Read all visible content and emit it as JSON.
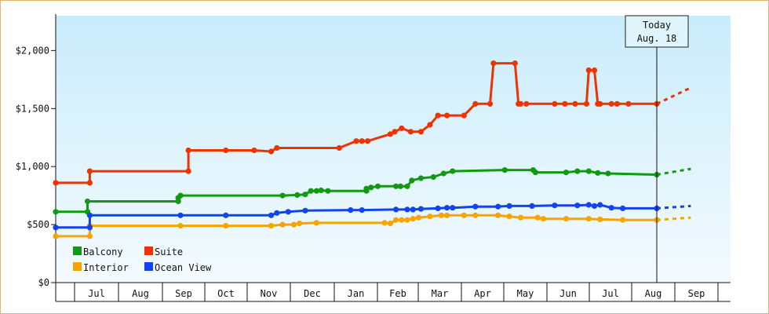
{
  "chart_data": {
    "type": "line",
    "today": {
      "label": "Today",
      "date": "Aug. 18"
    },
    "x_ticks": [
      "Jul",
      "Aug",
      "Sep",
      "Oct",
      "Nov",
      "Dec",
      "Jan",
      "Feb",
      "Mar",
      "Apr",
      "May",
      "Jun",
      "Jul",
      "Aug",
      "Sep"
    ],
    "y_ticks": [
      "$0",
      "$500",
      "$1,000",
      "$1,500",
      "$2,000"
    ],
    "ylim": [
      0,
      2300
    ],
    "xlim_days": [
      0,
      438
    ],
    "grid": false,
    "legend_placement": "bottom-left",
    "series": [
      {
        "name": "Balcony",
        "color": "#119911",
        "points": [
          [
            0,
            610
          ],
          [
            28,
            610
          ],
          [
            28,
            700
          ],
          [
            108,
            700
          ],
          [
            108,
            730
          ],
          [
            110,
            750
          ],
          [
            200,
            750
          ],
          [
            213,
            755
          ],
          [
            220,
            760
          ],
          [
            225,
            790
          ],
          [
            230,
            790
          ],
          [
            234,
            795
          ],
          [
            240,
            790
          ],
          [
            274,
            790
          ],
          [
            274,
            810
          ],
          [
            278,
            820
          ],
          [
            284,
            830
          ],
          [
            300,
            830
          ],
          [
            304,
            830
          ],
          [
            310,
            830
          ],
          [
            314,
            880
          ],
          [
            322,
            900
          ],
          [
            333,
            910
          ],
          [
            342,
            940
          ],
          [
            350,
            960
          ],
          [
            396,
            970
          ],
          [
            421,
            970
          ],
          [
            423,
            950
          ],
          [
            450,
            950
          ],
          [
            460,
            960
          ],
          [
            470,
            960
          ],
          [
            478,
            945
          ],
          [
            487,
            940
          ],
          [
            530,
            930
          ]
        ],
        "future": [
          [
            530,
            930
          ],
          [
            560,
            980
          ]
        ]
      },
      {
        "name": "Suite",
        "color": "#ee3300",
        "points": [
          [
            0,
            860
          ],
          [
            30,
            860
          ],
          [
            30,
            960
          ],
          [
            117,
            960
          ],
          [
            117,
            1140
          ],
          [
            150,
            1140
          ],
          [
            175,
            1140
          ],
          [
            190,
            1130
          ],
          [
            195,
            1160
          ],
          [
            250,
            1160
          ],
          [
            265,
            1220
          ],
          [
            270,
            1220
          ],
          [
            275,
            1220
          ],
          [
            295,
            1280
          ],
          [
            299,
            1300
          ],
          [
            305,
            1330
          ],
          [
            313,
            1300
          ],
          [
            322,
            1300
          ],
          [
            330,
            1360
          ],
          [
            337,
            1440
          ],
          [
            345,
            1440
          ],
          [
            360,
            1440
          ],
          [
            370,
            1540
          ],
          [
            383,
            1540
          ],
          [
            386,
            1890
          ],
          [
            405,
            1890
          ],
          [
            408,
            1540
          ],
          [
            410,
            1540
          ]
        ],
        "points_b": [
          [
            415,
            1540
          ],
          [
            440,
            1540
          ],
          [
            449,
            1540
          ],
          [
            458,
            1540
          ],
          [
            468,
            1540
          ],
          [
            470,
            1830
          ],
          [
            475,
            1830
          ],
          [
            478,
            1540
          ],
          [
            480,
            1540
          ],
          [
            490,
            1540
          ],
          [
            495,
            1540
          ],
          [
            505,
            1540
          ],
          [
            530,
            1540
          ]
        ],
        "future": [
          [
            530,
            1540
          ],
          [
            560,
            1680
          ]
        ]
      },
      {
        "name": "Interior",
        "color": "#f7a300",
        "points": [
          [
            0,
            400
          ],
          [
            30,
            400
          ],
          [
            30,
            490
          ],
          [
            110,
            490
          ],
          [
            150,
            490
          ],
          [
            190,
            490
          ],
          [
            200,
            500
          ],
          [
            210,
            500
          ],
          [
            215,
            510
          ],
          [
            230,
            515
          ],
          [
            290,
            515
          ],
          [
            295,
            510
          ],
          [
            300,
            540
          ],
          [
            305,
            540
          ],
          [
            310,
            540
          ],
          [
            315,
            550
          ],
          [
            320,
            560
          ],
          [
            330,
            570
          ],
          [
            340,
            580
          ],
          [
            345,
            580
          ],
          [
            360,
            580
          ],
          [
            370,
            580
          ],
          [
            390,
            580
          ],
          [
            400,
            570
          ],
          [
            410,
            560
          ],
          [
            425,
            560
          ],
          [
            430,
            550
          ],
          [
            450,
            550
          ],
          [
            470,
            550
          ],
          [
            480,
            545
          ],
          [
            500,
            540
          ],
          [
            530,
            540
          ]
        ],
        "future": [
          [
            530,
            540
          ],
          [
            560,
            560
          ]
        ]
      },
      {
        "name": "Ocean View",
        "color": "#1144ee",
        "points": [
          [
            0,
            475
          ],
          [
            30,
            475
          ],
          [
            30,
            580
          ],
          [
            110,
            580
          ],
          [
            150,
            580
          ],
          [
            190,
            580
          ],
          [
            195,
            600
          ],
          [
            205,
            610
          ],
          [
            220,
            620
          ],
          [
            260,
            625
          ],
          [
            270,
            625
          ],
          [
            300,
            630
          ],
          [
            310,
            630
          ],
          [
            315,
            630
          ],
          [
            322,
            635
          ],
          [
            337,
            640
          ],
          [
            345,
            645
          ],
          [
            350,
            645
          ],
          [
            370,
            655
          ],
          [
            390,
            655
          ],
          [
            400,
            660
          ],
          [
            420,
            660
          ],
          [
            440,
            665
          ],
          [
            460,
            665
          ],
          [
            470,
            670
          ],
          [
            475,
            660
          ],
          [
            480,
            670
          ],
          [
            490,
            645
          ],
          [
            500,
            640
          ],
          [
            530,
            640
          ]
        ],
        "future": [
          [
            530,
            640
          ],
          [
            560,
            660
          ]
        ]
      }
    ]
  }
}
